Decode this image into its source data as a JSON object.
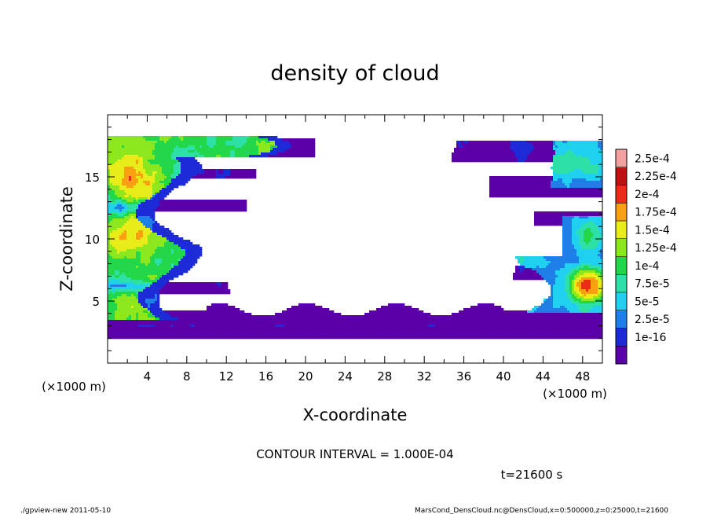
{
  "chart_data": {
    "type": "heatmap",
    "title": "density of cloud",
    "xlabel": "X-coordinate",
    "ylabel": "Z-coordinate",
    "x_unit": "(×1000 m)",
    "y_unit": "(×1000 m)",
    "xlim": [
      0,
      50
    ],
    "ylim": [
      0,
      20
    ],
    "x_ticks": [
      "4",
      "8",
      "12",
      "16",
      "20",
      "24",
      "28",
      "32",
      "36",
      "40",
      "44",
      "48"
    ],
    "y_ticks": [
      "5",
      "10",
      "15"
    ],
    "colorbar": {
      "labels": [
        "2.5e-4",
        "2.25e-4",
        "2e-4",
        "1.75e-4",
        "1.5e-4",
        "1.25e-4",
        "1e-4",
        "7.5e-5",
        "5e-5",
        "2.5e-5",
        "1e-16"
      ],
      "colors": [
        "#5b00a8",
        "#1c2ad8",
        "#1f7fe8",
        "#1fd0f0",
        "#2ce0a8",
        "#22d84a",
        "#8ce81c",
        "#e8ec18",
        "#f8a010",
        "#ee2a1a",
        "#c01010",
        "#f4a0a0"
      ]
    },
    "grid": false
  },
  "contour_interval": "CONTOUR INTERVAL = 1.000E-04",
  "time_label": "t=21600 s",
  "footer_left": "./gpview-new   2011-05-10",
  "footer_right": "MarsCond_DensCloud.nc@DensCloud,x=0:500000,z=0:25000,t=21600"
}
